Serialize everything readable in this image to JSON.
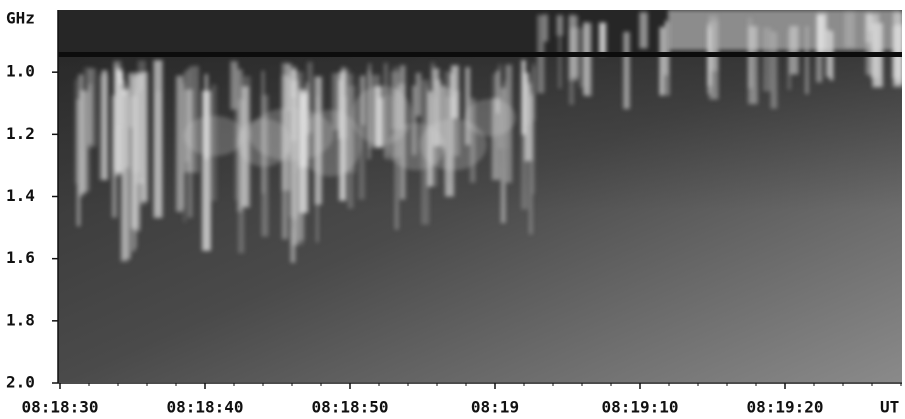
{
  "chart_data": {
    "type": "spectrogram",
    "y_unit": "GHz",
    "x_unit": "UT",
    "ylim": [
      0.8,
      2.0
    ],
    "y_inverted": true,
    "yticks": [
      {
        "value": 1.0,
        "label": "1.0"
      },
      {
        "value": 1.2,
        "label": "1.2"
      },
      {
        "value": 1.4,
        "label": "1.4"
      },
      {
        "value": 1.6,
        "label": "1.6"
      },
      {
        "value": 1.8,
        "label": "1.8"
      },
      {
        "value": 2.0,
        "label": "2.0"
      }
    ],
    "x_tick_labels": [
      "08:18:30",
      "08:18:40",
      "08:18:50",
      "08:19",
      "08:19:10",
      "08:19:20"
    ]
  }
}
